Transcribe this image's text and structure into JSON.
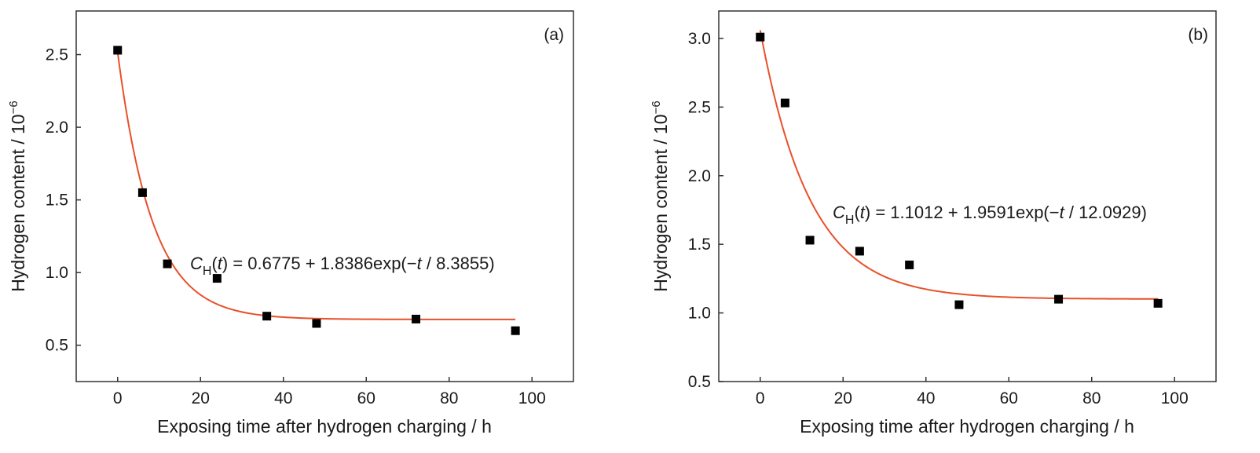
{
  "chart_data": [
    {
      "type": "scatter",
      "panel_label": "(a)",
      "xlabel": "Exposing time after hydrogen charging / h",
      "ylabel_main": "Hydrogen content / 10",
      "ylabel_exp": "−6",
      "xlim": [
        -10,
        110
      ],
      "ylim": [
        0.25,
        2.8
      ],
      "xticks": [
        0,
        20,
        40,
        60,
        80,
        100
      ],
      "yticks": [
        0.5,
        1.0,
        1.5,
        2.0,
        2.5
      ],
      "xtick_labels": [
        "0",
        "20",
        "40",
        "60",
        "80",
        "100"
      ],
      "ytick_labels": [
        "0.5",
        "1.0",
        "1.5",
        "2.0",
        "2.5"
      ],
      "grid": false,
      "points": {
        "x": [
          0,
          6,
          12,
          24,
          36,
          48,
          72,
          96
        ],
        "y": [
          2.53,
          1.55,
          1.06,
          0.96,
          0.7,
          0.65,
          0.68,
          0.6
        ]
      },
      "fit": {
        "a": 0.6775,
        "b": 1.8386,
        "tau": 8.3855,
        "x_range": [
          0,
          96
        ],
        "color": "#e8502a"
      },
      "equation": {
        "c": "C",
        "sub": "H",
        "t": "t",
        "rest": ") = 0.6775 + 1.8386exp(−",
        "div": " / 8.3855)"
      },
      "marker_color": "#000000"
    },
    {
      "type": "scatter",
      "panel_label": "(b)",
      "xlabel": "Exposing time after hydrogen charging / h",
      "ylabel_main": "Hydrogen content / 10",
      "ylabel_exp": "−6",
      "xlim": [
        -10,
        110
      ],
      "ylim": [
        0.5,
        3.2
      ],
      "xticks": [
        0,
        20,
        40,
        60,
        80,
        100
      ],
      "yticks": [
        0.5,
        1.0,
        1.5,
        2.0,
        2.5,
        3.0
      ],
      "xtick_labels": [
        "0",
        "20",
        "40",
        "60",
        "80",
        "100"
      ],
      "ytick_labels": [
        "0.5",
        "1.0",
        "1.5",
        "2.0",
        "2.5",
        "3.0"
      ],
      "grid": false,
      "points": {
        "x": [
          0,
          6,
          12,
          24,
          36,
          48,
          72,
          96
        ],
        "y": [
          3.01,
          2.53,
          1.53,
          1.45,
          1.35,
          1.06,
          1.1,
          1.07
        ]
      },
      "fit": {
        "a": 1.1012,
        "b": 1.9591,
        "tau": 12.0929,
        "x_range": [
          0,
          96
        ],
        "color": "#e8502a"
      },
      "equation": {
        "c": "C",
        "sub": "H",
        "t": "t",
        "rest": ") = 1.1012 + 1.9591exp(−",
        "div": " / 12.0929)"
      },
      "marker_color": "#000000"
    }
  ]
}
